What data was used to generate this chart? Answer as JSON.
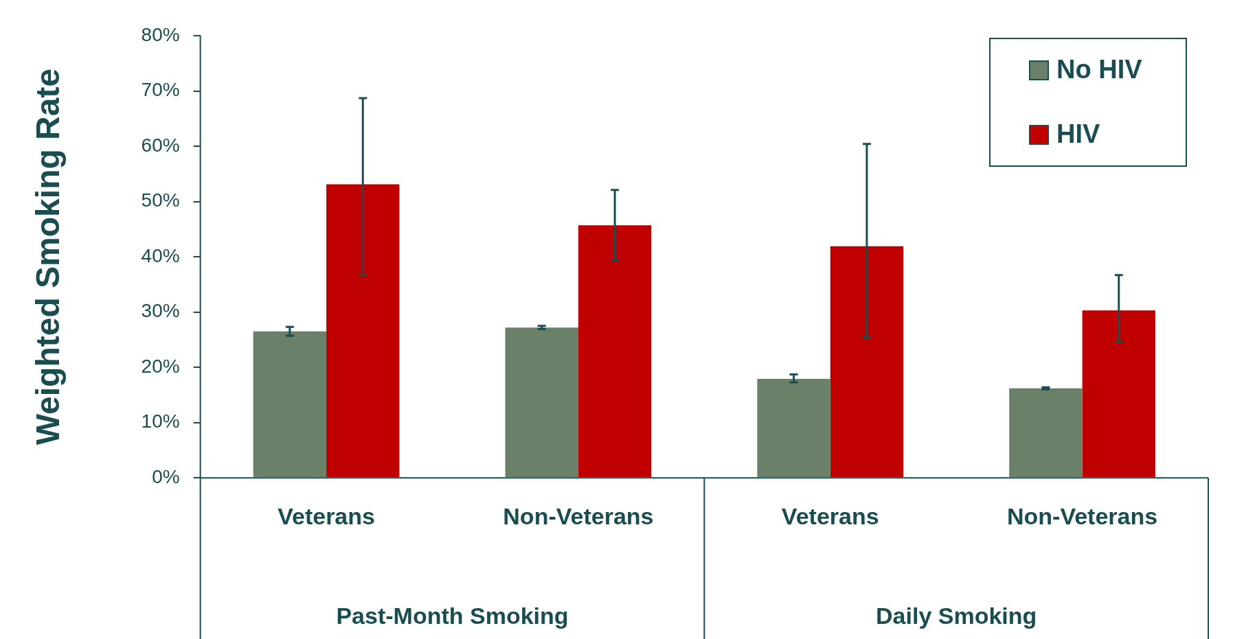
{
  "chart_data": {
    "type": "bar",
    "ylabel": "Weighted Smoking Rate",
    "categories": [
      "Veterans",
      "Non-Veterans",
      "Veterans",
      "Non-Veterans"
    ],
    "series": [
      {
        "name": "No HIV",
        "color": "#6b8068",
        "values": [
          26.5,
          27.2,
          17.9,
          16.2
        ],
        "errors": [
          [
            25.7,
            27.3
          ],
          [
            26.9,
            27.5
          ],
          [
            17.3,
            18.7
          ],
          [
            16.0,
            16.4
          ]
        ]
      },
      {
        "name": "HIV",
        "color": "#c00000",
        "values": [
          53.1,
          45.7,
          41.9,
          30.3
        ],
        "errors": [
          [
            36.7,
            68.7
          ],
          [
            39.4,
            52.1
          ],
          [
            25.4,
            60.4
          ],
          [
            24.6,
            36.7
          ]
        ]
      }
    ],
    "annotations": [
      "Past-Month Smoking",
      "Daily Smoking"
    ],
    "ylim": [
      0,
      80
    ],
    "yticks": [
      {
        "value": 0,
        "label": "0%"
      },
      {
        "value": 10,
        "label": "10%"
      },
      {
        "value": 20,
        "label": "20%"
      },
      {
        "value": 30,
        "label": "30%"
      },
      {
        "value": 40,
        "label": "40%"
      },
      {
        "value": 50,
        "label": "50%"
      },
      {
        "value": 60,
        "label": "60%"
      },
      {
        "value": 70,
        "label": "70%"
      },
      {
        "value": 80,
        "label": "80%"
      }
    ],
    "grid": false,
    "legend": "top right"
  }
}
